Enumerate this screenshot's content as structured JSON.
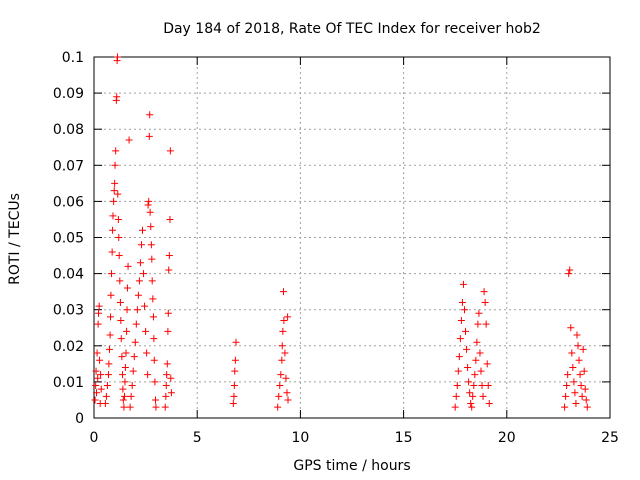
{
  "chart_data": {
    "type": "scatter",
    "title": "Day 184 of 2018, Rate Of TEC Index for receiver hob2",
    "xlabel": "GPS time / hours",
    "ylabel": "ROTI / TECUs",
    "xlim": [
      0,
      25
    ],
    "ylim": [
      0,
      0.1
    ],
    "x_ticks": [
      "0",
      "5",
      "10",
      "15",
      "20",
      "25"
    ],
    "y_ticks": [
      "0",
      "0.01",
      "0.02",
      "0.03",
      "0.04",
      "0.05",
      "0.06",
      "0.07",
      "0.08",
      "0.09",
      "0.1"
    ],
    "grid": true,
    "legend": "none",
    "marker": "+",
    "color": "#ff0000",
    "series": [
      {
        "points": [
          [
            0.05,
            0.005
          ],
          [
            0.08,
            0.009
          ],
          [
            0.1,
            0.013
          ],
          [
            0.12,
            0.007
          ],
          [
            0.15,
            0.018
          ],
          [
            0.18,
            0.011
          ],
          [
            0.2,
            0.026
          ],
          [
            0.22,
            0.029
          ],
          [
            0.25,
            0.031
          ],
          [
            0.27,
            0.016
          ],
          [
            0.3,
            0.004
          ],
          [
            0.32,
            0.012
          ],
          [
            0.35,
            0.008
          ],
          [
            0.55,
            0.004
          ],
          [
            0.6,
            0.006
          ],
          [
            0.65,
            0.009
          ],
          [
            0.7,
            0.012
          ],
          [
            0.72,
            0.015
          ],
          [
            0.75,
            0.019
          ],
          [
            0.78,
            0.023
          ],
          [
            0.8,
            0.028
          ],
          [
            0.82,
            0.034
          ],
          [
            0.85,
            0.04
          ],
          [
            0.88,
            0.046
          ],
          [
            0.9,
            0.052
          ],
          [
            0.92,
            0.056
          ],
          [
            0.95,
            0.06
          ],
          [
            0.98,
            0.063
          ],
          [
            1.0,
            0.065
          ],
          [
            1.02,
            0.07
          ],
          [
            1.05,
            0.074
          ],
          [
            1.08,
            0.088
          ],
          [
            1.1,
            0.089
          ],
          [
            1.12,
            0.099
          ],
          [
            1.14,
            0.1
          ],
          [
            1.15,
            0.062
          ],
          [
            1.18,
            0.055
          ],
          [
            1.2,
            0.05
          ],
          [
            1.22,
            0.045
          ],
          [
            1.25,
            0.038
          ],
          [
            1.28,
            0.032
          ],
          [
            1.3,
            0.027
          ],
          [
            1.32,
            0.022
          ],
          [
            1.35,
            0.017
          ],
          [
            1.38,
            0.012
          ],
          [
            1.4,
            0.008
          ],
          [
            1.42,
            0.005
          ],
          [
            1.45,
            0.003
          ],
          [
            1.48,
            0.006
          ],
          [
            1.5,
            0.01
          ],
          [
            1.52,
            0.014
          ],
          [
            1.55,
            0.018
          ],
          [
            1.58,
            0.024
          ],
          [
            1.6,
            0.03
          ],
          [
            1.62,
            0.036
          ],
          [
            1.65,
            0.042
          ],
          [
            1.7,
            0.077
          ],
          [
            1.75,
            0.003
          ],
          [
            1.8,
            0.006
          ],
          [
            1.85,
            0.009
          ],
          [
            1.9,
            0.013
          ],
          [
            1.95,
            0.017
          ],
          [
            2.0,
            0.021
          ],
          [
            2.05,
            0.026
          ],
          [
            2.1,
            0.03
          ],
          [
            2.15,
            0.034
          ],
          [
            2.2,
            0.038
          ],
          [
            2.25,
            0.043
          ],
          [
            2.3,
            0.048
          ],
          [
            2.35,
            0.052
          ],
          [
            2.4,
            0.04
          ],
          [
            2.45,
            0.031
          ],
          [
            2.5,
            0.024
          ],
          [
            2.55,
            0.018
          ],
          [
            2.6,
            0.012
          ],
          [
            2.62,
            0.059
          ],
          [
            2.65,
            0.06
          ],
          [
            2.68,
            0.078
          ],
          [
            2.7,
            0.084
          ],
          [
            2.72,
            0.057
          ],
          [
            2.75,
            0.053
          ],
          [
            2.78,
            0.048
          ],
          [
            2.8,
            0.044
          ],
          [
            2.82,
            0.038
          ],
          [
            2.85,
            0.033
          ],
          [
            2.88,
            0.028
          ],
          [
            2.9,
            0.022
          ],
          [
            2.92,
            0.016
          ],
          [
            2.95,
            0.01
          ],
          [
            2.98,
            0.005
          ],
          [
            3.0,
            0.003
          ],
          [
            3.45,
            0.003
          ],
          [
            3.48,
            0.006
          ],
          [
            3.5,
            0.009
          ],
          [
            3.52,
            0.012
          ],
          [
            3.55,
            0.015
          ],
          [
            3.58,
            0.024
          ],
          [
            3.6,
            0.029
          ],
          [
            3.62,
            0.041
          ],
          [
            3.65,
            0.045
          ],
          [
            3.68,
            0.055
          ],
          [
            3.7,
            0.074
          ],
          [
            3.72,
            0.011
          ],
          [
            3.75,
            0.007
          ],
          [
            6.75,
            0.004
          ],
          [
            6.78,
            0.006
          ],
          [
            6.8,
            0.009
          ],
          [
            6.82,
            0.013
          ],
          [
            6.85,
            0.016
          ],
          [
            6.88,
            0.021
          ],
          [
            8.9,
            0.003
          ],
          [
            8.95,
            0.006
          ],
          [
            9.0,
            0.009
          ],
          [
            9.05,
            0.012
          ],
          [
            9.1,
            0.016
          ],
          [
            9.12,
            0.02
          ],
          [
            9.15,
            0.024
          ],
          [
            9.18,
            0.035
          ],
          [
            9.2,
            0.027
          ],
          [
            9.25,
            0.018
          ],
          [
            9.3,
            0.011
          ],
          [
            9.35,
            0.007
          ],
          [
            9.38,
            0.028
          ],
          [
            9.4,
            0.005
          ],
          [
            17.5,
            0.003
          ],
          [
            17.55,
            0.006
          ],
          [
            17.6,
            0.009
          ],
          [
            17.65,
            0.013
          ],
          [
            17.7,
            0.017
          ],
          [
            17.75,
            0.022
          ],
          [
            17.8,
            0.027
          ],
          [
            17.85,
            0.032
          ],
          [
            17.9,
            0.037
          ],
          [
            17.95,
            0.03
          ],
          [
            18.0,
            0.024
          ],
          [
            18.05,
            0.019
          ],
          [
            18.1,
            0.014
          ],
          [
            18.15,
            0.01
          ],
          [
            18.2,
            0.007
          ],
          [
            18.25,
            0.004
          ],
          [
            18.3,
            0.003
          ],
          [
            18.35,
            0.006
          ],
          [
            18.4,
            0.009
          ],
          [
            18.45,
            0.012
          ],
          [
            18.5,
            0.016
          ],
          [
            18.55,
            0.021
          ],
          [
            18.6,
            0.026
          ],
          [
            18.65,
            0.029
          ],
          [
            18.7,
            0.018
          ],
          [
            18.75,
            0.013
          ],
          [
            18.8,
            0.009
          ],
          [
            18.85,
            0.006
          ],
          [
            18.9,
            0.035
          ],
          [
            18.95,
            0.032
          ],
          [
            19.0,
            0.026
          ],
          [
            19.05,
            0.015
          ],
          [
            19.1,
            0.009
          ],
          [
            19.15,
            0.004
          ],
          [
            22.8,
            0.003
          ],
          [
            22.85,
            0.006
          ],
          [
            22.9,
            0.009
          ],
          [
            22.95,
            0.012
          ],
          [
            23.0,
            0.04
          ],
          [
            23.05,
            0.041
          ],
          [
            23.1,
            0.025
          ],
          [
            23.15,
            0.018
          ],
          [
            23.2,
            0.014
          ],
          [
            23.25,
            0.01
          ],
          [
            23.3,
            0.007
          ],
          [
            23.35,
            0.004
          ],
          [
            23.4,
            0.023
          ],
          [
            23.45,
            0.02
          ],
          [
            23.5,
            0.016
          ],
          [
            23.55,
            0.012
          ],
          [
            23.6,
            0.009
          ],
          [
            23.65,
            0.006
          ],
          [
            23.7,
            0.019
          ],
          [
            23.75,
            0.013
          ],
          [
            23.8,
            0.008
          ],
          [
            23.85,
            0.005
          ],
          [
            23.9,
            0.003
          ]
        ]
      }
    ]
  }
}
